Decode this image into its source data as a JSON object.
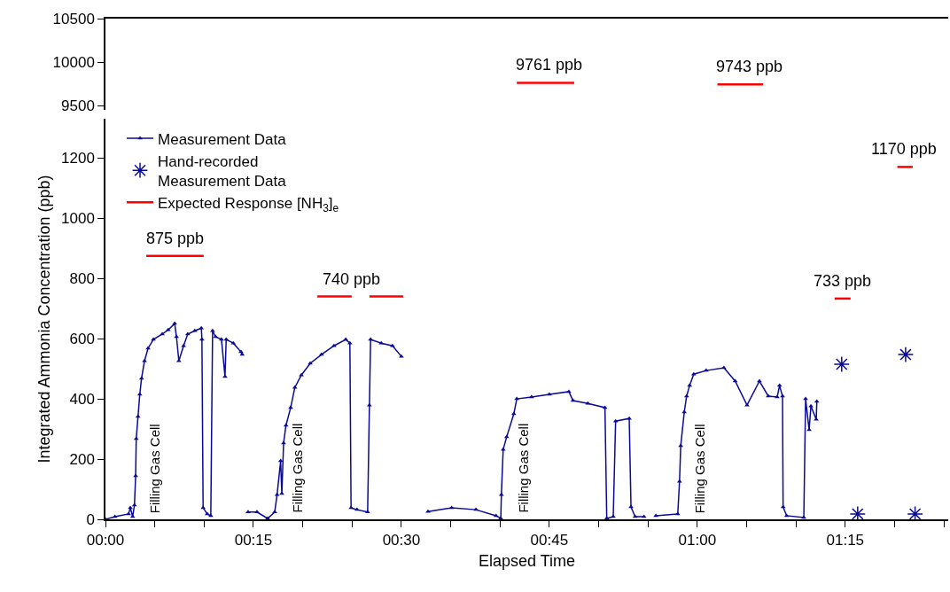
{
  "chart_data": [
    {
      "type": "line",
      "xlim": [
        0,
        1.424
      ],
      "ylim": [
        9450,
        10500
      ],
      "yticks": [
        9500,
        10000,
        10500
      ],
      "tick_labels": "y",
      "grid": false,
      "legend": false,
      "series": [
        {
          "color": "#ff0000",
          "marker": "none",
          "x": [
            0.695,
            0.792,
            0.9,
            1.034,
            1.111
          ],
          "values": [
            9761,
            9761,
            null,
            9743,
            9743
          ]
        }
      ],
      "annotations": [
        {
          "text": "9761 ppb",
          "x": 0.75,
          "y": 9761
        },
        {
          "text": "9743 ppb",
          "x": 1.088,
          "y": 9743
        }
      ]
    },
    {
      "type": "line",
      "xlabel": "Elapsed Time",
      "ylabel": "Integrated Ammonia Concentration (ppb)",
      "xlim": [
        0,
        1.424
      ],
      "ylim": [
        0,
        1330
      ],
      "xticks": [
        {
          "value": 0,
          "label": "00:00"
        },
        {
          "value": 0.0833,
          "label": null
        },
        {
          "value": 0.1667,
          "label": null
        },
        {
          "value": 0.25,
          "label": "00:15"
        },
        {
          "value": 0.3333,
          "label": null
        },
        {
          "value": 0.4167,
          "label": null
        },
        {
          "value": 0.5,
          "label": "00:30"
        },
        {
          "value": 0.5833,
          "label": null
        },
        {
          "value": 0.6667,
          "label": null
        },
        {
          "value": 0.75,
          "label": "00:45"
        },
        {
          "value": 0.8333,
          "label": null
        },
        {
          "value": 0.9167,
          "label": null
        },
        {
          "value": 1,
          "label": "01:00"
        },
        {
          "value": 1.0833,
          "label": null
        },
        {
          "value": 1.1667,
          "label": null
        },
        {
          "value": 1.25,
          "label": "01:15"
        },
        {
          "value": 1.3333,
          "label": null
        },
        {
          "value": 1.4167,
          "label": null
        }
      ],
      "yticks": [
        0,
        200,
        400,
        600,
        800,
        1000,
        1200
      ],
      "grid": false,
      "legend": "top left",
      "series": [
        {
          "name": "Measurement Data",
          "color": "#0a0a96",
          "marker": "triangle",
          "x": [
            0,
            0.016,
            0.039,
            0.042,
            0.046,
            0.049,
            0.051,
            0.052,
            0.055,
            0.058,
            0.061,
            0.066,
            0.072,
            0.081,
            0.096,
            0.106,
            0.117,
            0.12,
            0.124,
            0.132,
            0.139,
            0.151,
            0.162,
            0.163,
            0.165,
            0.172,
            0.178,
            0.181,
            0.186,
            0.196,
            0.202,
            0.204,
            0.216,
            0.229,
            0.231,
            0.236,
            0.241,
            0.256,
            0.274,
            0.286,
            0.29,
            0.296,
            0.298,
            0.301,
            0.305,
            0.313,
            0.32,
            0.331,
            0.346,
            0.365,
            0.386,
            0.406,
            0.413,
            0.415,
            0.425,
            0.443,
            0.446,
            0.448,
            0.466,
            0.485,
            0.5,
            0.52,
            0.545,
            0.585,
            0.626,
            0.66,
            0.668,
            0.669,
            0.672,
            0.678,
            0.69,
            0.695,
            0.72,
            0.75,
            0.783,
            0.79,
            0.815,
            0.844,
            0.847,
            0.858,
            0.862,
            0.885,
            0.888,
            0.895,
            0.91,
            0.92,
            0.93,
            0.967,
            0.97,
            0.972,
            0.978,
            0.982,
            0.987,
            0.994,
            1.015,
            1.045,
            1.064,
            1.084,
            1.105,
            1.12,
            1.135,
            1.139,
            1.144,
            1.145,
            1.151,
            1.18,
            1.183,
            1.189,
            1.192,
            1.201,
            1.202
          ],
          "values": [
            0,
            9,
            18,
            38,
            9,
            47,
            144,
            268,
            341,
            415,
            468,
            526,
            568,
            597,
            615,
            629,
            650,
            606,
            526,
            576,
            615,
            626,
            635,
            597,
            38,
            18,
            12,
            626,
            606,
            597,
            474,
            597,
            585,
            556,
            547,
            null,
            24,
            24,
            3,
            24,
            82,
            194,
            85,
            253,
            312,
            371,
            438,
            479,
            518,
            547,
            576,
            597,
            585,
            38,
            32,
            24,
            379,
            597,
            585,
            576,
            541,
            null,
            26,
            38,
            32,
            12,
            3,
            82,
            232,
            274,
            350,
            400,
            406,
            415,
            424,
            394,
            385,
            371,
            3,
            9,
            326,
            335,
            41,
            9,
            9,
            null,
            12,
            18,
            126,
            244,
            356,
            409,
            444,
            482,
            494,
            503,
            459,
            379,
            459,
            409,
            406,
            444,
            409,
            41,
            12,
            6,
            400,
            297,
            376,
            332,
            391
          ]
        },
        {
          "type": "scatter",
          "name": "Hand-recorded\nMeasurement Data",
          "color": "#0a0a96",
          "marker": "cross",
          "x": [
            1.244,
            1.271,
            1.352,
            1.368
          ],
          "values": [
            515,
            18,
            547,
            18
          ]
        },
        {
          "name": "Expected Response [NH$_{3}$]$_{e}$",
          "color": "#ff0000",
          "marker": "none",
          "x": [
            0.069,
            0.166,
            0.2,
            0.358,
            0.416,
            0.43,
            0.446,
            0.503,
            0.6,
            1.232,
            1.259,
            1.3,
            1.338,
            1.364
          ],
          "values": [
            875,
            875,
            null,
            740,
            740,
            null,
            740,
            740,
            null,
            733,
            733,
            null,
            1170,
            1170
          ]
        }
      ],
      "annotations": [
        {
          "text": "875 ppb",
          "x": 0.117,
          "y": 875
        },
        {
          "text": "740 ppb",
          "x": 0.416,
          "y": 740
        },
        {
          "text": "733 ppb",
          "x": 1.245,
          "y": 733
        },
        {
          "text": "1170 ppb",
          "x": 1.349,
          "y": 1170
        },
        {
          "text": "Filling Gas Cell",
          "x": 0.046,
          "y": 9
        },
        {
          "text": "Filling Gas Cell",
          "x": 0.286,
          "y": 24
        },
        {
          "text": "Filling Gas Cell",
          "x": 0.668,
          "y": 3
        },
        {
          "text": "Filling Gas Cell",
          "x": 0.967,
          "y": 18
        }
      ]
    }
  ]
}
